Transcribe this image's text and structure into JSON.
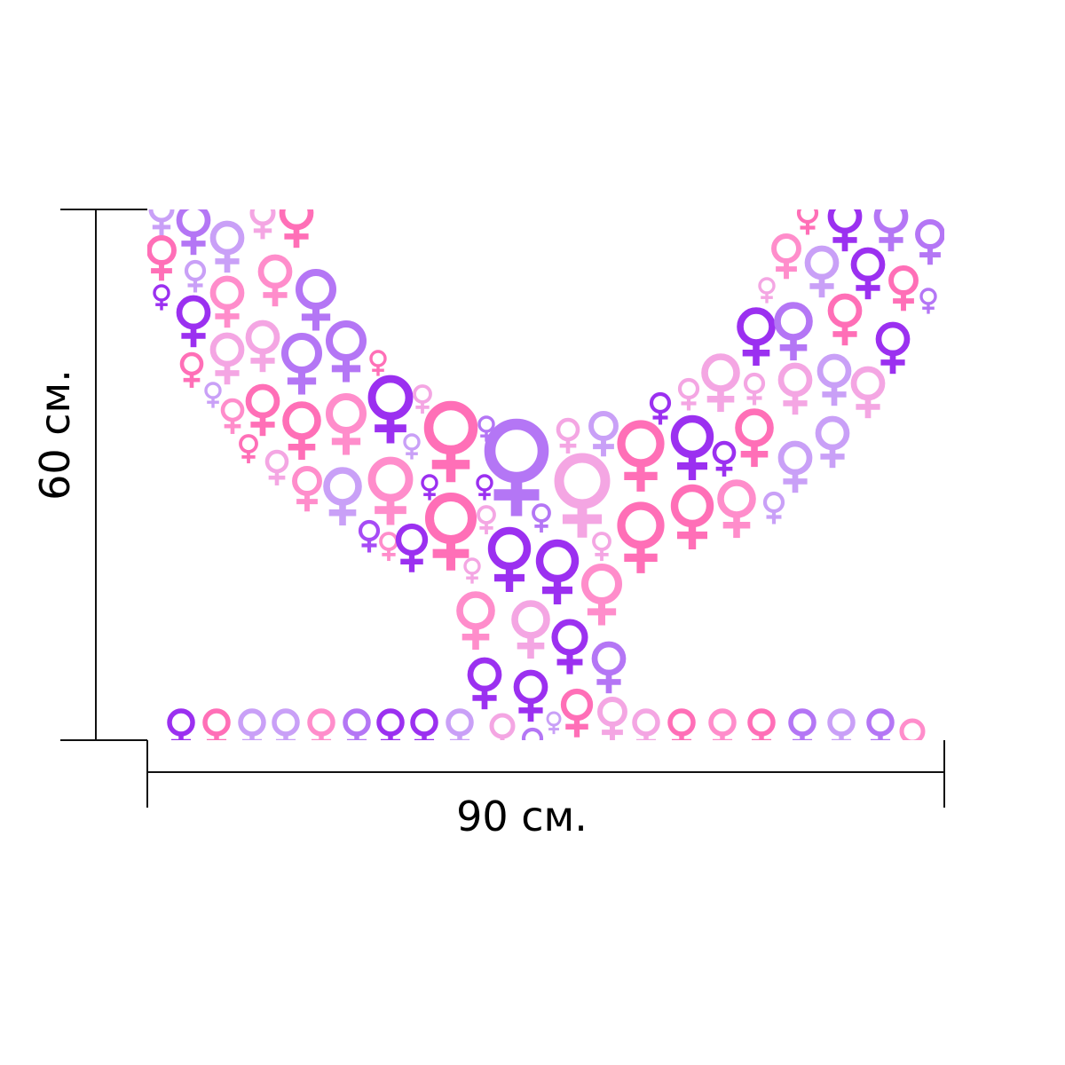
{
  "dimensions": {
    "height_label": "60 см.",
    "width_label": "90 см."
  },
  "artwork": {
    "icon": "female-symbol-icon",
    "shape": "wine-glass silhouette",
    "colors": [
      "#9B30F0",
      "#B476F5",
      "#C9A0F7",
      "#FF6FB7",
      "#FF8DCB",
      "#F4A6E3",
      "#A64BF5",
      "#E060C8"
    ]
  }
}
